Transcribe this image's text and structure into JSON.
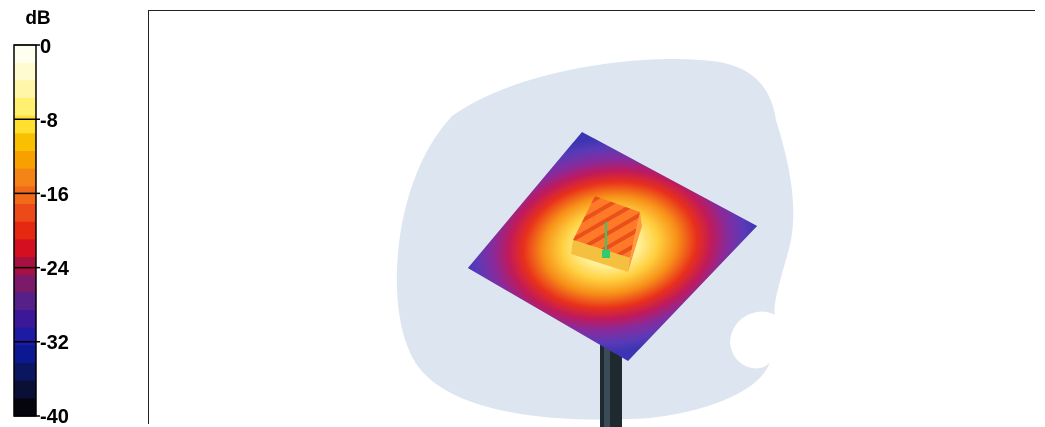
{
  "colorbar": {
    "unit": "dB",
    "ticks": [
      "0",
      "-8",
      "-16",
      "-24",
      "-32",
      "-40"
    ],
    "colors": [
      "#fffff0",
      "#fffbd0",
      "#fff6a8",
      "#fff070",
      "#ffe030",
      "#f8c000",
      "#f7a000",
      "#f48418",
      "#f06a1a",
      "#ec4a18",
      "#e52810",
      "#d41020",
      "#a81040",
      "#7a1a68",
      "#552088",
      "#3a1898",
      "#1d1aa4",
      "#0c1890",
      "#0a1660",
      "#0a0f35",
      "#050510"
    ],
    "bands": [
      "0",
      "-2",
      "-4",
      "-6",
      "-8",
      "-10",
      "-12",
      "-14",
      "-16",
      "-18",
      "-20",
      "-22",
      "-24",
      "-26",
      "-28",
      "-30",
      "-32",
      "-34",
      "-36",
      "-38",
      "-40"
    ]
  },
  "scene": {
    "background_color": "#dde6f0",
    "plate_edge_color": "#3b35b5",
    "hot_color": "#ff5a1a",
    "feed_color": "#2ecc71",
    "mast_color": "#1f2a30"
  }
}
